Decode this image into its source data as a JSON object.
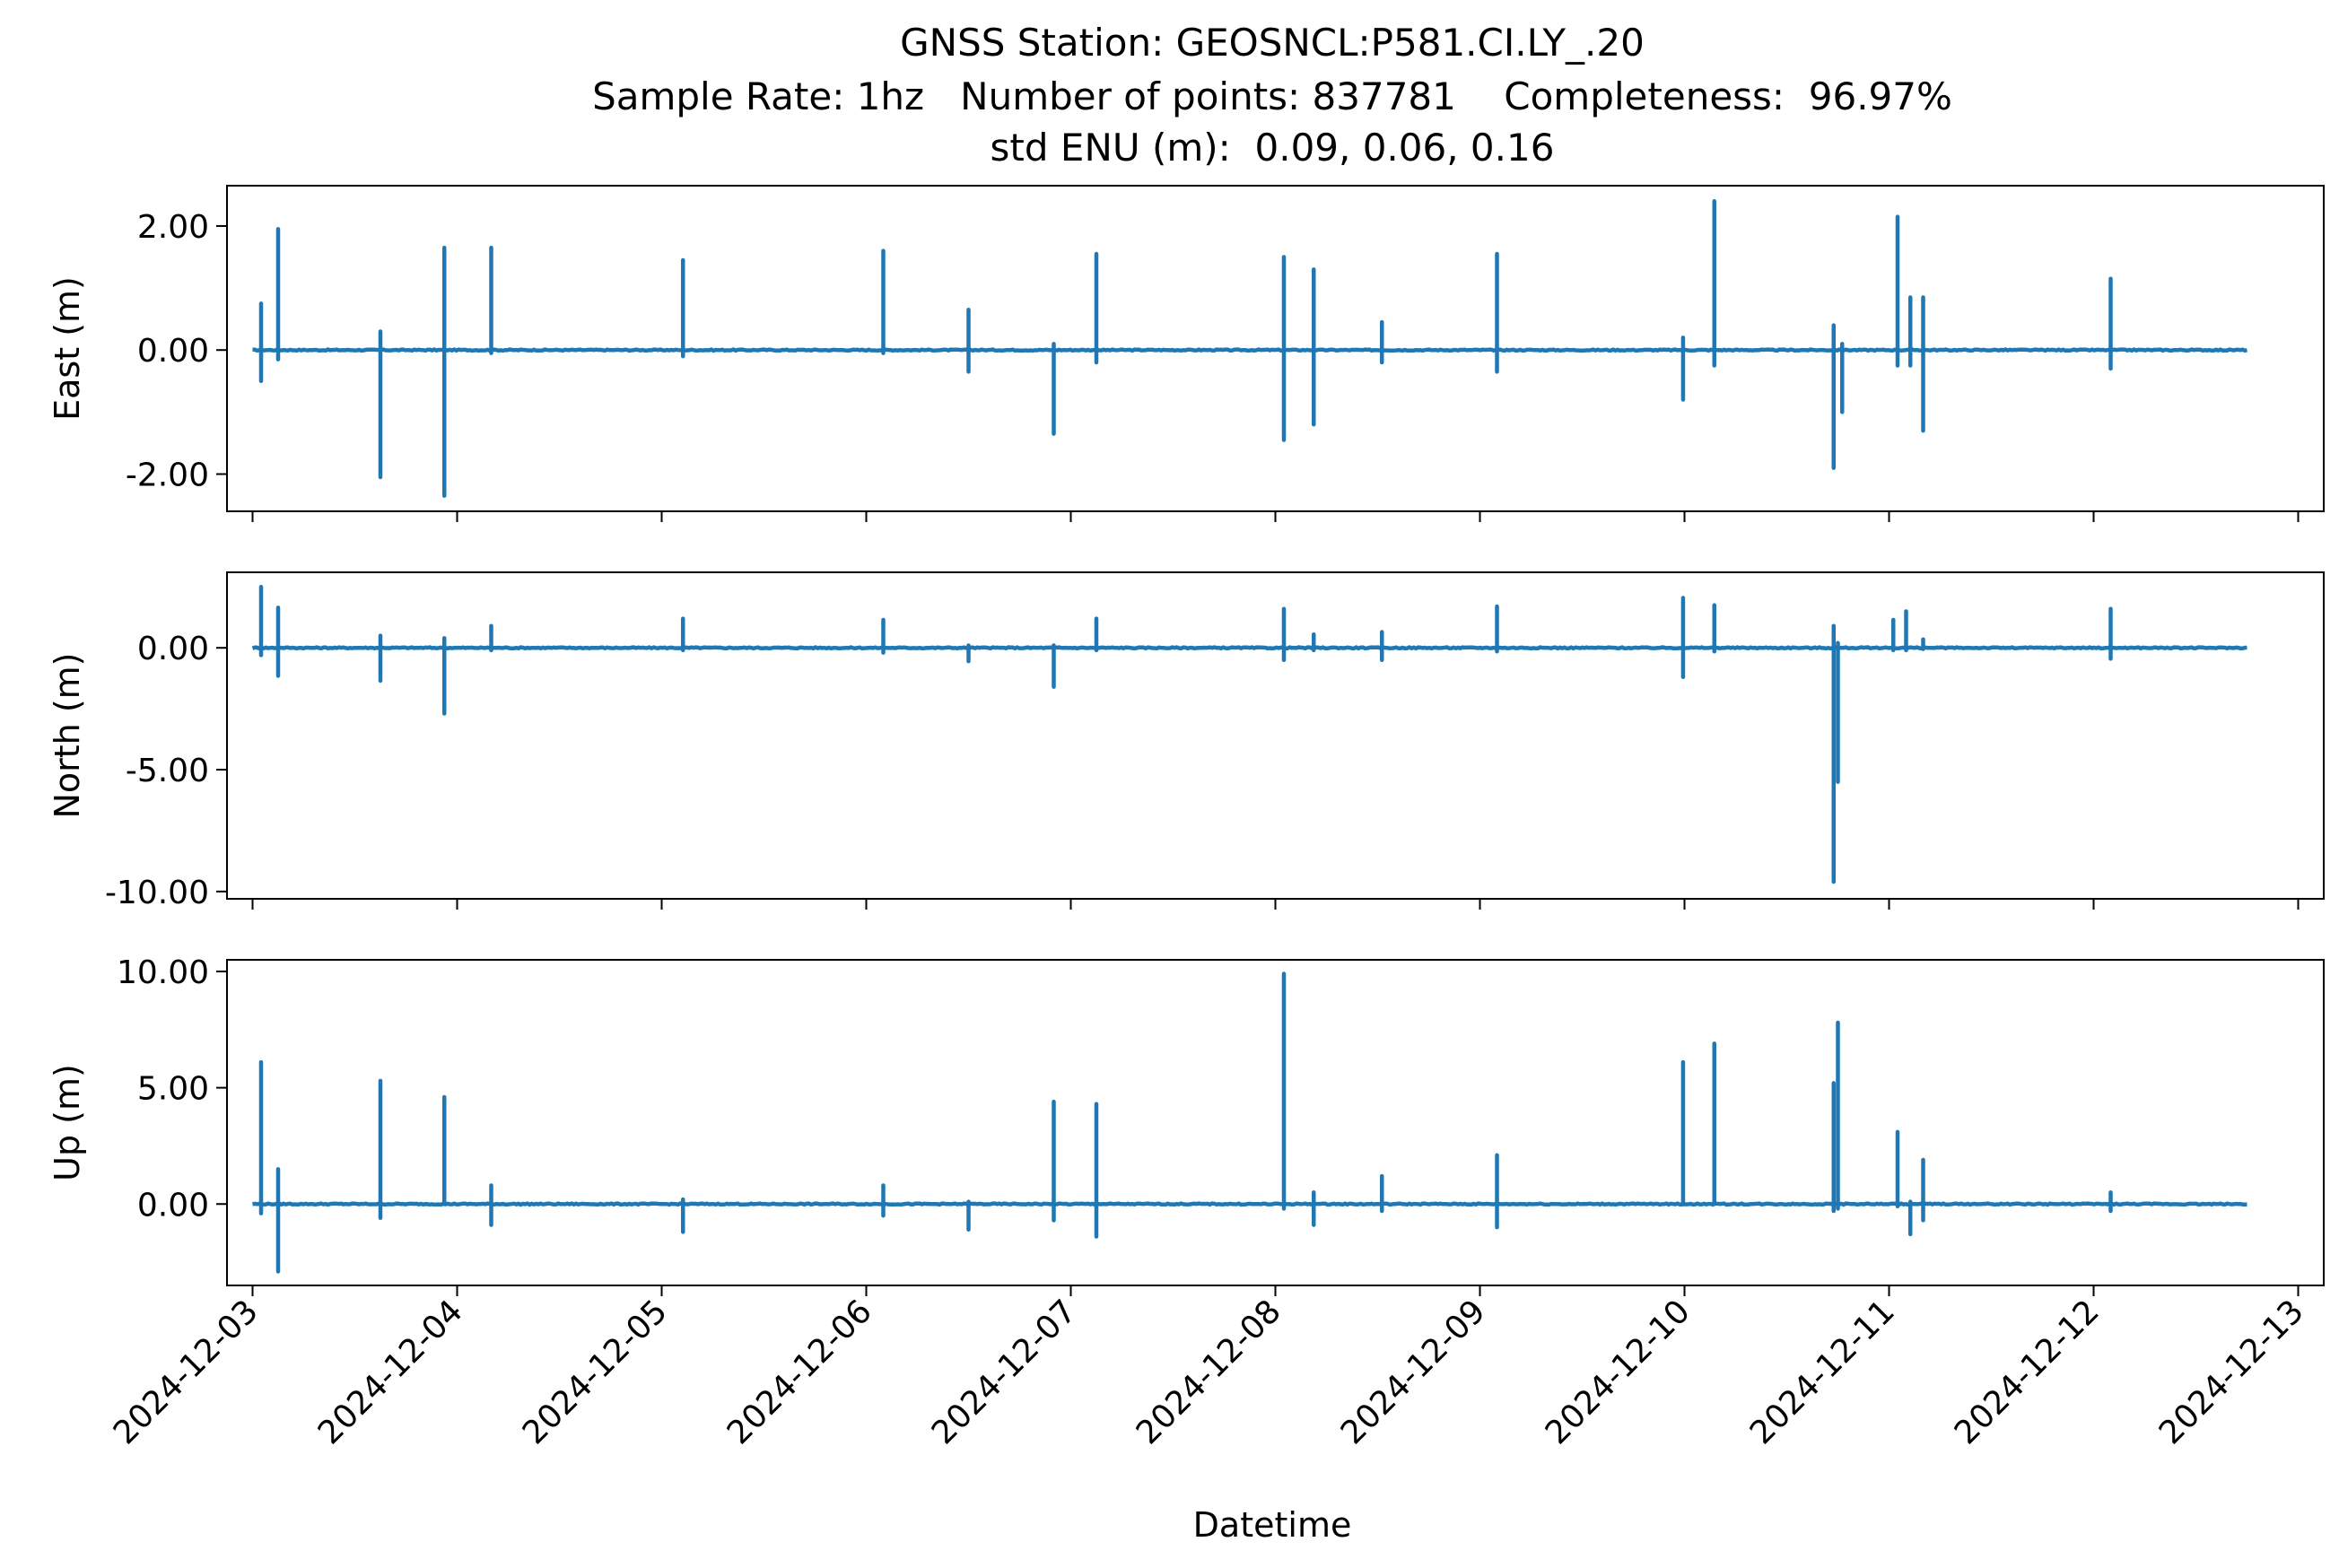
{
  "title": {
    "line1": "GNSS Station: GEOSNCL:P581.CI.LY_.20",
    "line2": "Sample Rate: 1hz   Number of points: 837781    Completeness:  96.97%",
    "line3": "std ENU (m):  0.09, 0.06, 0.16"
  },
  "xlabel": "Datetime",
  "colors": {
    "series": "#1f77b4",
    "axes": "#000000",
    "background": "#ffffff"
  },
  "chart_data": {
    "type": "line",
    "title": "GNSS Station: GEOSNCL:P581.CI.LY_.20 / Sample Rate: 1hz   Number of points: 837781    Completeness:  96.97% / std ENU (m):  0.09, 0.06, 0.16",
    "xlabel": "Datetime",
    "x_type": "datetime",
    "xlim": [
      "2024-12-02 21:00",
      "2024-12-13 03:00"
    ],
    "x_range": [
      "2024-12-03 00:00",
      "2024-12-12 18:00"
    ],
    "x_ticks": [
      "2024-12-03",
      "2024-12-04",
      "2024-12-05",
      "2024-12-06",
      "2024-12-07",
      "2024-12-08",
      "2024-12-09",
      "2024-12-10",
      "2024-12-11",
      "2024-12-12",
      "2024-12-13"
    ],
    "grid": false,
    "legend": "none",
    "panels": [
      {
        "ylabel": "East (m)",
        "ylim": [
          -2.6,
          2.65
        ],
        "yticks": [
          2.0,
          0.0,
          -2.0
        ],
        "ytick_labels": [
          "2.00",
          "0.00",
          "-2.00"
        ],
        "spikes": [
          {
            "t": "2024-12-03 01:00",
            "min": -0.5,
            "max": 0.75
          },
          {
            "t": "2024-12-03 03:00",
            "min": -0.15,
            "max": 1.95
          },
          {
            "t": "2024-12-03 15:00",
            "min": -2.05,
            "max": 0.3
          },
          {
            "t": "2024-12-03 22:30",
            "min": -2.35,
            "max": 1.65
          },
          {
            "t": "2024-12-04 04:00",
            "min": -0.05,
            "max": 1.65
          },
          {
            "t": "2024-12-05 02:30",
            "min": -0.1,
            "max": 1.45
          },
          {
            "t": "2024-12-06 02:00",
            "min": -0.05,
            "max": 1.6
          },
          {
            "t": "2024-12-06 12:00",
            "min": -0.35,
            "max": 0.65
          },
          {
            "t": "2024-12-06 22:00",
            "min": -1.35,
            "max": 0.1
          },
          {
            "t": "2024-12-07 03:00",
            "min": -0.2,
            "max": 1.55
          },
          {
            "t": "2024-12-08 01:00",
            "min": -1.45,
            "max": 1.5
          },
          {
            "t": "2024-12-08 04:30",
            "min": -1.2,
            "max": 1.3
          },
          {
            "t": "2024-12-08 12:30",
            "min": -0.2,
            "max": 0.45
          },
          {
            "t": "2024-12-09 02:00",
            "min": -0.35,
            "max": 1.55
          },
          {
            "t": "2024-12-09 23:50",
            "min": -0.8,
            "max": 0.2
          },
          {
            "t": "2024-12-10 03:30",
            "min": -0.25,
            "max": 2.4
          },
          {
            "t": "2024-12-10 17:30",
            "min": -1.9,
            "max": 0.4
          },
          {
            "t": "2024-12-10 18:30",
            "min": -1.0,
            "max": 0.1
          },
          {
            "t": "2024-12-11 01:00",
            "min": -0.25,
            "max": 2.15
          },
          {
            "t": "2024-12-11 02:30",
            "min": -0.25,
            "max": 0.85
          },
          {
            "t": "2024-12-11 04:00",
            "min": -1.3,
            "max": 0.85
          },
          {
            "t": "2024-12-12 02:00",
            "min": -0.3,
            "max": 1.15
          }
        ]
      },
      {
        "ylabel": "North (m)",
        "ylim": [
          -10.3,
          3.1
        ],
        "yticks": [
          0.0,
          -5.0,
          -10.0
        ],
        "ytick_labels": [
          "0.00",
          "-5.00",
          "-10.00"
        ],
        "spikes": [
          {
            "t": "2024-12-03 01:00",
            "min": -0.3,
            "max": 2.5
          },
          {
            "t": "2024-12-03 03:00",
            "min": -1.15,
            "max": 1.65
          },
          {
            "t": "2024-12-03 15:00",
            "min": -1.35,
            "max": 0.5
          },
          {
            "t": "2024-12-03 22:30",
            "min": -2.7,
            "max": 0.4
          },
          {
            "t": "2024-12-04 04:00",
            "min": -0.1,
            "max": 0.9
          },
          {
            "t": "2024-12-05 02:30",
            "min": -0.1,
            "max": 1.2
          },
          {
            "t": "2024-12-06 02:00",
            "min": -0.2,
            "max": 1.15
          },
          {
            "t": "2024-12-06 12:00",
            "min": -0.55,
            "max": 0.1
          },
          {
            "t": "2024-12-06 22:00",
            "min": -1.6,
            "max": 0.1
          },
          {
            "t": "2024-12-07 03:00",
            "min": -0.1,
            "max": 1.2
          },
          {
            "t": "2024-12-08 01:00",
            "min": -0.5,
            "max": 1.6
          },
          {
            "t": "2024-12-08 04:30",
            "min": -0.1,
            "max": 0.55
          },
          {
            "t": "2024-12-08 12:30",
            "min": -0.5,
            "max": 0.65
          },
          {
            "t": "2024-12-09 02:00",
            "min": -0.15,
            "max": 1.7
          },
          {
            "t": "2024-12-09 23:50",
            "min": -1.2,
            "max": 2.05
          },
          {
            "t": "2024-12-10 03:30",
            "min": -0.15,
            "max": 1.75
          },
          {
            "t": "2024-12-10 17:30",
            "min": -9.6,
            "max": 0.9
          },
          {
            "t": "2024-12-10 18:00",
            "min": -5.5,
            "max": 0.2
          },
          {
            "t": "2024-12-11 00:30",
            "min": -0.1,
            "max": 1.15
          },
          {
            "t": "2024-12-11 02:00",
            "min": -0.1,
            "max": 1.5
          },
          {
            "t": "2024-12-11 04:00",
            "min": -0.05,
            "max": 0.35
          },
          {
            "t": "2024-12-12 02:00",
            "min": -0.45,
            "max": 1.6
          }
        ]
      },
      {
        "ylabel": "Up (m)",
        "ylim": [
          -3.5,
          10.5
        ],
        "yticks": [
          10.0,
          5.0,
          0.0
        ],
        "ytick_labels": [
          "10.00",
          "5.00",
          "0.00"
        ],
        "spikes": [
          {
            "t": "2024-12-03 01:00",
            "min": -0.4,
            "max": 6.1
          },
          {
            "t": "2024-12-03 03:00",
            "min": -2.9,
            "max": 1.5
          },
          {
            "t": "2024-12-03 15:00",
            "min": -0.6,
            "max": 5.3
          },
          {
            "t": "2024-12-03 22:30",
            "min": 0.0,
            "max": 4.6
          },
          {
            "t": "2024-12-04 04:00",
            "min": -0.9,
            "max": 0.8
          },
          {
            "t": "2024-12-05 02:30",
            "min": -1.2,
            "max": 0.2
          },
          {
            "t": "2024-12-06 02:00",
            "min": -0.5,
            "max": 0.8
          },
          {
            "t": "2024-12-06 12:00",
            "min": -1.1,
            "max": 0.1
          },
          {
            "t": "2024-12-06 22:00",
            "min": -0.7,
            "max": 4.4
          },
          {
            "t": "2024-12-07 03:00",
            "min": -1.4,
            "max": 4.3
          },
          {
            "t": "2024-12-08 01:00",
            "min": -0.2,
            "max": 9.9
          },
          {
            "t": "2024-12-08 04:30",
            "min": -0.9,
            "max": 0.5
          },
          {
            "t": "2024-12-08 12:30",
            "min": -0.3,
            "max": 1.2
          },
          {
            "t": "2024-12-09 02:00",
            "min": -1.0,
            "max": 2.1
          },
          {
            "t": "2024-12-09 23:50",
            "min": 0.0,
            "max": 6.1
          },
          {
            "t": "2024-12-10 03:30",
            "min": 0.0,
            "max": 6.9
          },
          {
            "t": "2024-12-10 17:30",
            "min": -0.3,
            "max": 5.2
          },
          {
            "t": "2024-12-10 18:00",
            "min": -0.2,
            "max": 7.8
          },
          {
            "t": "2024-12-11 01:00",
            "min": -0.1,
            "max": 3.1
          },
          {
            "t": "2024-12-11 02:30",
            "min": -1.3,
            "max": 0.1
          },
          {
            "t": "2024-12-11 04:00",
            "min": -0.7,
            "max": 1.9
          },
          {
            "t": "2024-12-12 02:00",
            "min": -0.3,
            "max": 0.5
          }
        ]
      }
    ]
  }
}
